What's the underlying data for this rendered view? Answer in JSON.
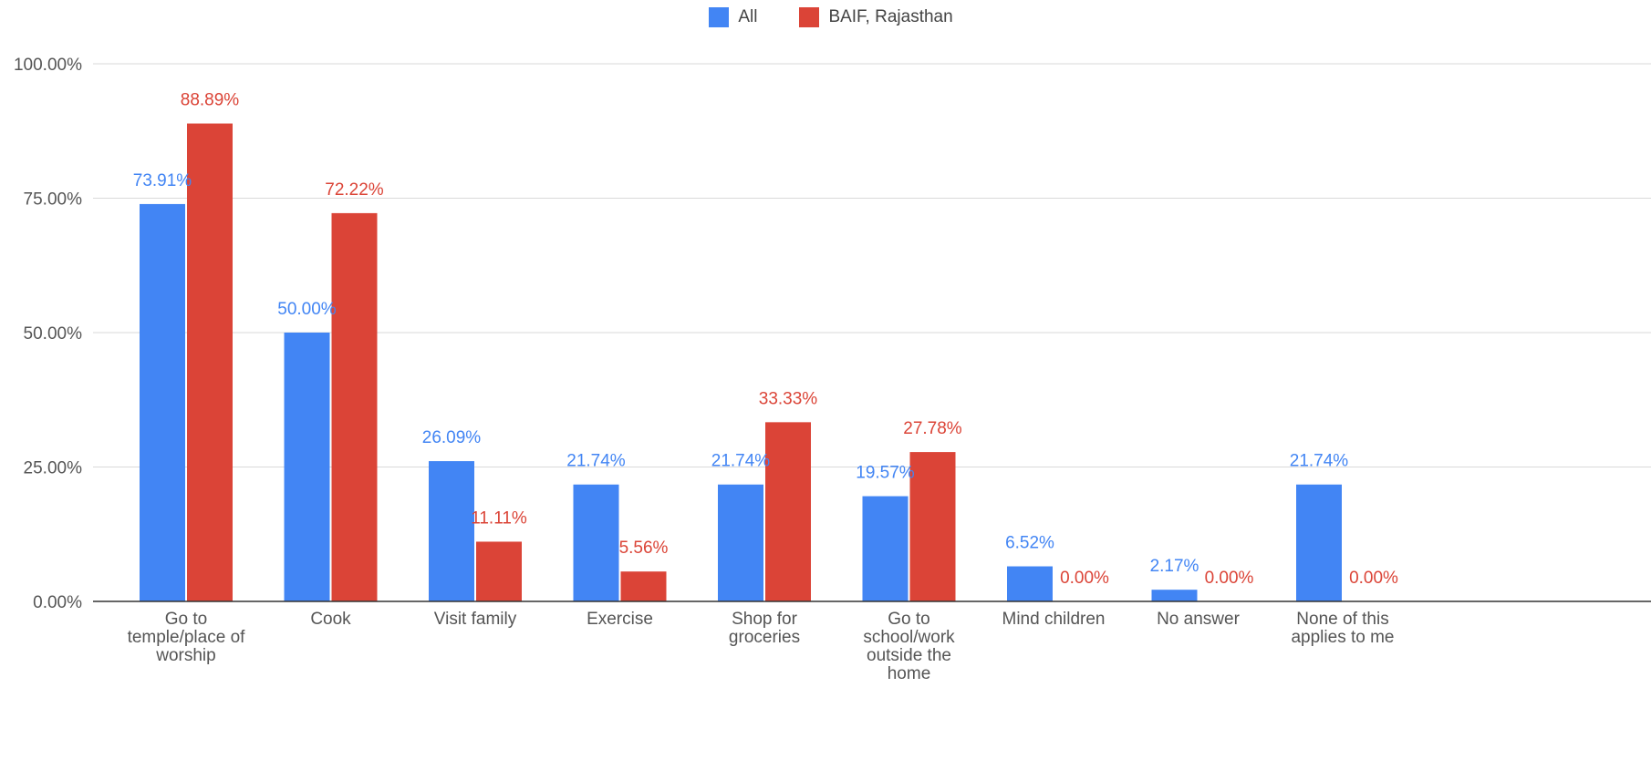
{
  "chart_data": {
    "type": "bar",
    "title": "",
    "xlabel": "",
    "ylabel": "",
    "ylim": [
      0,
      100
    ],
    "yticks": [
      "0.00%",
      "25.00%",
      "50.00%",
      "75.00%",
      "100.00%"
    ],
    "grid": true,
    "legend_position": "top",
    "categories": [
      "Go to temple/place of worship",
      "Cook",
      "Visit family",
      "Exercise",
      "Shop for groceries",
      "Go to school/work outside the home",
      "Mind children",
      "No answer",
      "None of this applies to me"
    ],
    "category_lines": [
      [
        "Go to",
        "temple/place of",
        "worship"
      ],
      [
        "Cook"
      ],
      [
        "Visit family"
      ],
      [
        "Exercise"
      ],
      [
        "Shop for",
        "groceries"
      ],
      [
        "Go to",
        "school/work",
        "outside the",
        "home"
      ],
      [
        "Mind children"
      ],
      [
        "No answer"
      ],
      [
        "None of this",
        "applies to me"
      ]
    ],
    "series": [
      {
        "name": "All",
        "color": "#4285f4",
        "values": [
          73.91,
          50.0,
          26.09,
          21.74,
          21.74,
          19.57,
          6.52,
          2.17,
          21.74
        ],
        "labels": [
          "73.91%",
          "50.00%",
          "26.09%",
          "21.74%",
          "21.74%",
          "19.57%",
          "6.52%",
          "2.17%",
          "21.74%"
        ]
      },
      {
        "name": "BAIF, Rajasthan",
        "color": "#db4437",
        "values": [
          88.89,
          72.22,
          11.11,
          5.56,
          33.33,
          27.78,
          0.0,
          0.0,
          0.0
        ],
        "labels": [
          "88.89%",
          "72.22%",
          "11.11%",
          "5.56%",
          "33.33%",
          "27.78%",
          "0.00%",
          "0.00%",
          "0.00%"
        ]
      }
    ]
  }
}
